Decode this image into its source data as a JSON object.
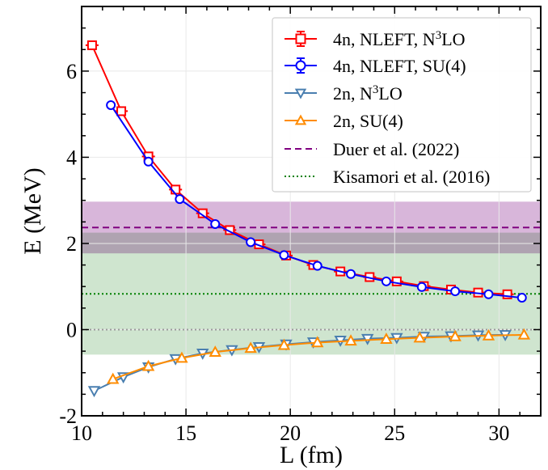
{
  "chart_data": {
    "type": "line",
    "title": "",
    "xlabel": "L (fm)",
    "ylabel": "E (MeV)",
    "xlim": [
      10,
      32
    ],
    "ylim": [
      -2,
      7.5
    ],
    "xticks": [
      10,
      15,
      20,
      25,
      30
    ],
    "xtick_labels": [
      "10",
      "15",
      "20",
      "25",
      "30"
    ],
    "yticks": [
      -2,
      0,
      2,
      4,
      6
    ],
    "ytick_labels": [
      "-2",
      "0",
      "2",
      "4",
      "6"
    ],
    "grid": true,
    "legend_position": "top-right",
    "series": [
      {
        "name": "4n, NLEFT, N³LO",
        "legend_label": {
          "pre": "4n, NLEFT, N",
          "sup": "3",
          "post": "LO"
        },
        "color": "#ff0000",
        "marker": "square",
        "x": [
          10.5,
          11.9,
          13.2,
          14.5,
          15.8,
          17.1,
          18.5,
          19.8,
          21.1,
          22.4,
          23.8,
          25.1,
          26.4,
          27.7,
          29.0,
          30.4
        ],
        "y": [
          6.6,
          5.07,
          4.02,
          3.25,
          2.7,
          2.31,
          1.98,
          1.72,
          1.5,
          1.35,
          1.22,
          1.12,
          1.01,
          0.93,
          0.86,
          0.82
        ]
      },
      {
        "name": "4n, NLEFT, SU(4)",
        "color": "#0000ff",
        "marker": "circle",
        "x": [
          11.4,
          13.2,
          14.7,
          16.4,
          18.1,
          19.7,
          21.3,
          22.9,
          24.6,
          26.3,
          27.9,
          29.5,
          31.1
        ],
        "y": [
          5.21,
          3.9,
          3.03,
          2.45,
          2.03,
          1.73,
          1.48,
          1.29,
          1.12,
          0.99,
          0.89,
          0.82,
          0.74
        ]
      },
      {
        "name": "2n, N³LO",
        "legend_label": {
          "pre": "2n, N",
          "sup": "3",
          "post": "LO"
        },
        "color": "#4a7fb0",
        "marker": "triangle-down",
        "x": [
          10.6,
          12.0,
          13.2,
          14.5,
          15.8,
          17.2,
          18.5,
          19.8,
          21.1,
          22.4,
          23.7,
          25.1,
          26.4,
          27.7,
          29.0,
          30.3
        ],
        "y": [
          -1.42,
          -1.1,
          -0.87,
          -0.68,
          -0.55,
          -0.47,
          -0.4,
          -0.34,
          -0.29,
          -0.25,
          -0.21,
          -0.19,
          -0.16,
          -0.15,
          -0.13,
          -0.12
        ]
      },
      {
        "name": "2n, SU(4)",
        "color": "#ff8c00",
        "marker": "triangle-up",
        "x": [
          11.5,
          13.2,
          14.8,
          16.4,
          18.1,
          19.7,
          21.3,
          22.9,
          24.6,
          26.2,
          27.9,
          29.5,
          31.2
        ],
        "y": [
          -1.15,
          -0.85,
          -0.66,
          -0.52,
          -0.43,
          -0.36,
          -0.3,
          -0.26,
          -0.22,
          -0.19,
          -0.16,
          -0.14,
          -0.12
        ]
      }
    ],
    "reference_lines": [
      {
        "name": "Duer et al. (2022)",
        "style": "dashed",
        "color": "#800080",
        "y": 2.37,
        "band": [
          1.77,
          2.97
        ],
        "band_color": "#d8b6da"
      },
      {
        "name": "Kisamori et al. (2016)",
        "style": "dotted",
        "color": "#008000",
        "y": 0.83,
        "band": [
          -0.58,
          2.25
        ],
        "band_color": "#cfe5cf"
      }
    ],
    "zero_line": {
      "y": 0,
      "style": "dotted",
      "color": "#9a9a9a"
    }
  }
}
